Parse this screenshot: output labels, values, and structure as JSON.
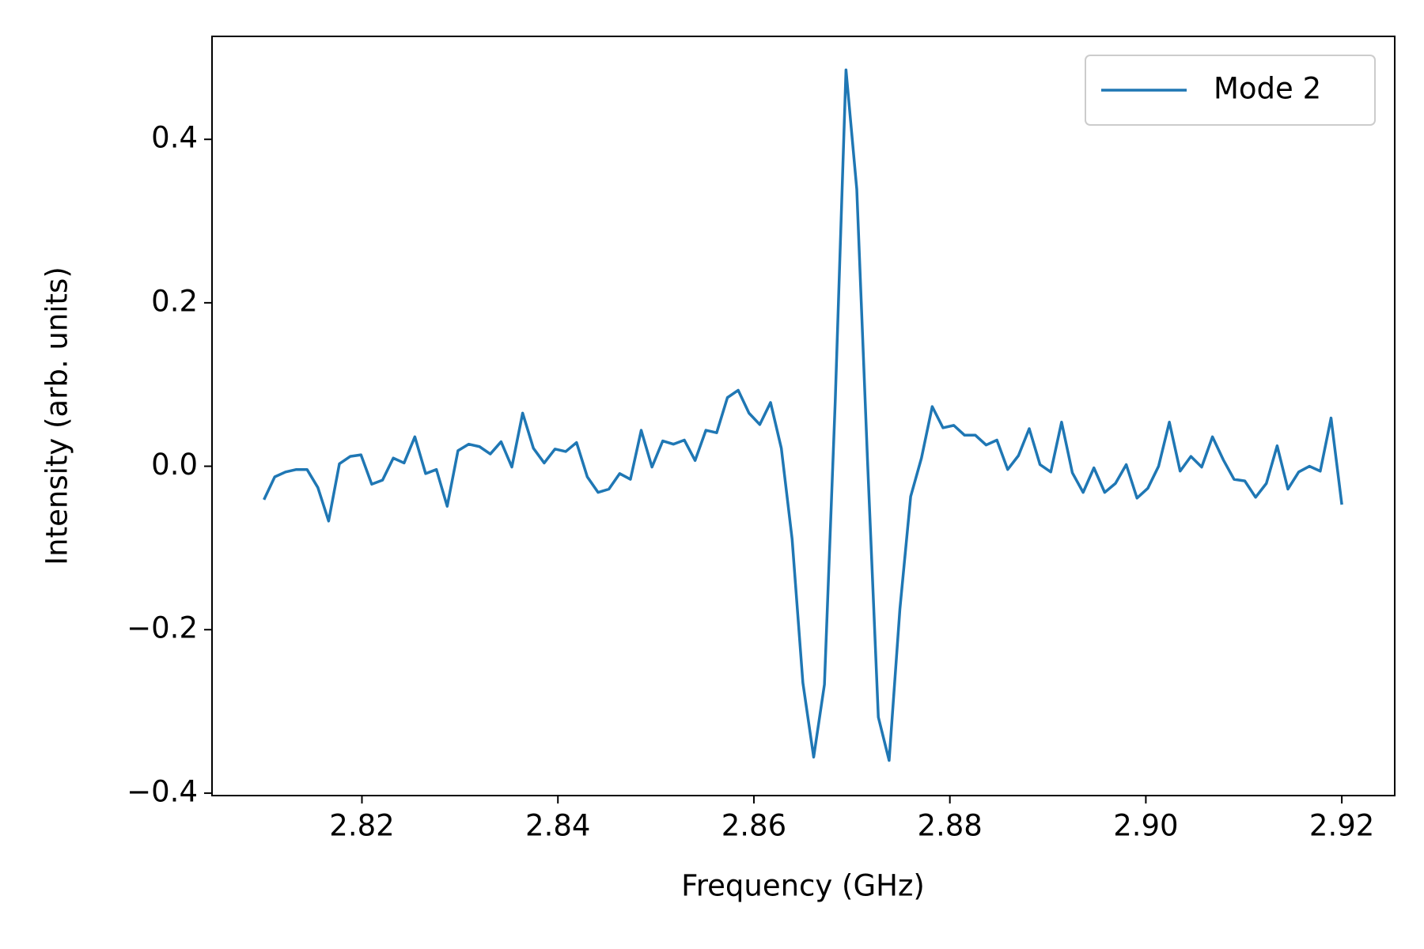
{
  "chart_data": {
    "type": "line",
    "xlabel": "Frequency (GHz)",
    "ylabel": "Intensity (arb. units)",
    "x": [
      2.81,
      2.8111,
      2.8122,
      2.8133,
      2.8144,
      2.8155,
      2.8166,
      2.8177,
      2.8188,
      2.8199,
      2.821,
      2.8221,
      2.8232,
      2.8243,
      2.8254,
      2.8265,
      2.8276,
      2.8287,
      2.8298,
      2.8309,
      2.832,
      2.8331,
      2.8342,
      2.8353,
      2.8364,
      2.8375,
      2.8386,
      2.8397,
      2.8408,
      2.8419,
      2.843,
      2.8441,
      2.8452,
      2.8463,
      2.8474,
      2.8485,
      2.8496,
      2.8507,
      2.8518,
      2.8529,
      2.854,
      2.8551,
      2.8562,
      2.8573,
      2.8584,
      2.8595,
      2.8606,
      2.8617,
      2.8628,
      2.8639,
      2.865,
      2.8661,
      2.8672,
      2.8683,
      2.8694,
      2.8705,
      2.8716,
      2.8727,
      2.8738,
      2.8749,
      2.876,
      2.8771,
      2.8782,
      2.8793,
      2.8804,
      2.8815,
      2.8826,
      2.8837,
      2.8848,
      2.8859,
      2.887,
      2.8881,
      2.8892,
      2.8903,
      2.8914,
      2.8925,
      2.8936,
      2.8947,
      2.8958,
      2.8969,
      2.898,
      2.8991,
      2.9002,
      2.9013,
      2.9024,
      2.9035,
      2.9046,
      2.9057,
      2.9068,
      2.9079,
      2.909,
      2.9101,
      2.9112,
      2.9123,
      2.9134,
      2.9145,
      2.9156,
      2.9167,
      2.9178,
      2.9189,
      2.92
    ],
    "series": [
      {
        "name": "Mode 2",
        "color": "#1f77b4",
        "values": [
          -0.041,
          -0.013,
          -0.007,
          -0.004,
          -0.004,
          -0.026,
          -0.067,
          0.003,
          0.012,
          0.014,
          -0.022,
          -0.017,
          0.01,
          0.004,
          0.036,
          -0.009,
          -0.004,
          -0.049,
          0.019,
          0.027,
          0.024,
          0.015,
          0.03,
          -0.001,
          0.065,
          0.022,
          0.004,
          0.021,
          0.018,
          0.029,
          -0.013,
          -0.032,
          -0.028,
          -0.009,
          -0.016,
          0.044,
          -0.001,
          0.031,
          0.027,
          0.032,
          0.007,
          0.044,
          0.041,
          0.084,
          0.093,
          0.065,
          0.051,
          0.078,
          0.022,
          -0.089,
          -0.265,
          -0.356,
          -0.267,
          0.079,
          0.485,
          0.339,
          0.006,
          -0.307,
          -0.36,
          -0.175,
          -0.037,
          0.01,
          0.073,
          0.047,
          0.05,
          0.038,
          0.038,
          0.026,
          0.032,
          -0.004,
          0.013,
          0.046,
          0.002,
          -0.007,
          0.054,
          -0.008,
          -0.032,
          -0.002,
          -0.032,
          -0.021,
          0.002,
          -0.039,
          -0.027,
          0.0,
          0.054,
          -0.006,
          0.012,
          -0.001,
          0.036,
          0.008,
          -0.016,
          -0.018,
          -0.038,
          -0.021,
          0.025,
          -0.028,
          -0.007,
          0.0,
          -0.006,
          0.059,
          -0.047
        ]
      }
    ],
    "xlim": [
      2.8047,
      2.9254
    ],
    "ylim": [
      -0.403,
      0.526
    ],
    "xticks": [
      2.82,
      2.84,
      2.86,
      2.88,
      {
        "value": 2.9,
        "label": "2.90"
      },
      2.92
    ],
    "yticks": [
      {
        "value": -0.4,
        "label": "−0.4"
      },
      {
        "value": -0.2,
        "label": "−0.2"
      },
      {
        "value": 0,
        "label": "0.0"
      },
      0.2,
      0.4
    ],
    "legend": "upper right"
  }
}
